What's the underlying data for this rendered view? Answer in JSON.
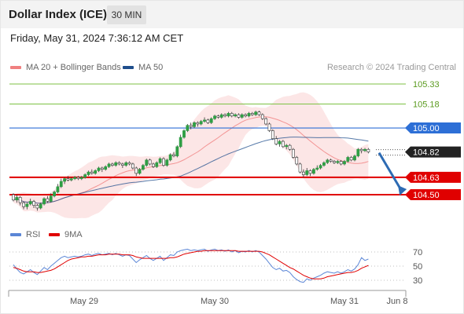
{
  "header": {
    "title": "Dollar Index (ICE)",
    "interval": "30 MIN"
  },
  "datetime": "Friday, May 31, 2024 7:36:12 AM CET",
  "legend": {
    "ma20_bb": "MA 20 + Bollinger Bands",
    "ma50": "MA 50",
    "credit": "Research © 2024 Trading Central",
    "rsi": "RSI",
    "nine_ma": "9MA"
  },
  "colors": {
    "bollinger": "#f08080",
    "ma50": "#1f4e8c",
    "resistance": "#7cc243",
    "pivot": "#2d6fd6",
    "support": "#e00000",
    "current": "#222222",
    "rsi": "#5b86d6",
    "rsi_ma": "#e00000"
  },
  "chart_data": [
    {
      "type": "candlestick",
      "x_tick_labels": [
        "May 29",
        "May 30",
        "May 31",
        "Jun 8"
      ],
      "y_range": [
        104.33,
        105.38
      ],
      "levels": [
        {
          "value": 105.33,
          "label": "105.33",
          "kind": "resistance"
        },
        {
          "value": 105.18,
          "label": "105.18",
          "kind": "resistance"
        },
        {
          "value": 105.0,
          "label": "105.00",
          "kind": "pivot"
        },
        {
          "value": 104.82,
          "label": "104.82",
          "kind": "current"
        },
        {
          "value": 104.63,
          "label": "104.63",
          "kind": "support"
        },
        {
          "value": 104.5,
          "label": "104.50",
          "kind": "support"
        }
      ],
      "forecast": {
        "from": 104.82,
        "to": 104.5,
        "direction": "down"
      },
      "candles": [
        [
          104.5,
          104.46,
          104.51,
          104.45
        ],
        [
          104.46,
          104.48,
          104.5,
          104.44
        ],
        [
          104.48,
          104.44,
          104.49,
          104.42
        ],
        [
          104.44,
          104.41,
          104.45,
          104.39
        ],
        [
          104.41,
          104.43,
          104.44,
          104.39
        ],
        [
          104.43,
          104.45,
          104.47,
          104.42
        ],
        [
          104.45,
          104.42,
          104.46,
          104.4
        ],
        [
          104.42,
          104.4,
          104.43,
          104.38
        ],
        [
          104.4,
          104.43,
          104.44,
          104.39
        ],
        [
          104.43,
          104.47,
          104.48,
          104.42
        ],
        [
          104.47,
          104.45,
          104.49,
          104.44
        ],
        [
          104.45,
          104.49,
          104.51,
          104.44
        ],
        [
          104.49,
          104.52,
          104.53,
          104.48
        ],
        [
          104.52,
          104.56,
          104.58,
          104.51
        ],
        [
          104.56,
          104.6,
          104.62,
          104.55
        ],
        [
          104.6,
          104.62,
          104.63,
          104.58
        ],
        [
          104.62,
          104.61,
          104.64,
          104.6
        ],
        [
          104.61,
          104.62,
          104.63,
          104.6
        ],
        [
          104.62,
          104.63,
          104.64,
          104.61
        ],
        [
          104.63,
          104.62,
          104.64,
          104.61
        ],
        [
          104.62,
          104.63,
          104.64,
          104.61
        ],
        [
          104.63,
          104.65,
          104.66,
          104.62
        ],
        [
          104.65,
          104.67,
          104.68,
          104.64
        ],
        [
          104.67,
          104.66,
          104.69,
          104.65
        ],
        [
          104.66,
          104.68,
          104.69,
          104.65
        ],
        [
          104.68,
          104.7,
          104.71,
          104.67
        ],
        [
          104.7,
          104.69,
          104.71,
          104.67
        ],
        [
          104.69,
          104.71,
          104.72,
          104.68
        ],
        [
          104.71,
          104.73,
          104.74,
          104.7
        ],
        [
          104.73,
          104.72,
          104.74,
          104.71
        ],
        [
          104.72,
          104.74,
          104.75,
          104.71
        ],
        [
          104.74,
          104.73,
          104.75,
          104.72
        ],
        [
          104.73,
          104.72,
          104.74,
          104.7
        ],
        [
          104.72,
          104.74,
          104.75,
          104.71
        ],
        [
          104.74,
          104.73,
          104.75,
          104.72
        ],
        [
          104.73,
          104.7,
          104.74,
          104.69
        ],
        [
          104.7,
          104.66,
          104.71,
          104.64
        ],
        [
          104.66,
          104.69,
          104.7,
          104.65
        ],
        [
          104.69,
          104.72,
          104.73,
          104.68
        ],
        [
          104.72,
          104.76,
          104.77,
          104.71
        ],
        [
          104.76,
          104.73,
          104.77,
          104.72
        ],
        [
          104.73,
          104.71,
          104.74,
          104.7
        ],
        [
          104.71,
          104.74,
          104.75,
          104.7
        ],
        [
          104.74,
          104.77,
          104.78,
          104.73
        ],
        [
          104.77,
          104.72,
          104.78,
          104.71
        ],
        [
          104.72,
          104.76,
          104.77,
          104.71
        ],
        [
          104.76,
          104.8,
          104.81,
          104.75
        ],
        [
          104.8,
          104.79,
          104.82,
          104.78
        ],
        [
          104.79,
          104.86,
          104.87,
          104.78
        ],
        [
          104.86,
          104.93,
          104.95,
          104.85
        ],
        [
          104.93,
          104.98,
          104.99,
          104.92
        ],
        [
          104.98,
          105.02,
          105.03,
          104.97
        ],
        [
          105.02,
          105.01,
          105.04,
          104.99
        ],
        [
          105.01,
          105.04,
          105.05,
          105.0
        ],
        [
          105.04,
          105.03,
          105.05,
          105.01
        ],
        [
          105.03,
          105.05,
          105.06,
          105.02
        ],
        [
          105.05,
          105.06,
          105.08,
          105.04
        ],
        [
          105.06,
          105.04,
          105.07,
          105.03
        ],
        [
          105.04,
          105.07,
          105.08,
          105.03
        ],
        [
          105.07,
          105.09,
          105.1,
          105.06
        ],
        [
          105.09,
          105.08,
          105.1,
          105.07
        ],
        [
          105.08,
          105.1,
          105.11,
          105.07
        ],
        [
          105.1,
          105.09,
          105.11,
          105.08
        ],
        [
          105.09,
          105.11,
          105.12,
          105.08
        ],
        [
          105.11,
          105.09,
          105.12,
          105.08
        ],
        [
          105.09,
          105.1,
          105.11,
          105.08
        ],
        [
          105.1,
          105.08,
          105.11,
          105.07
        ],
        [
          105.08,
          105.1,
          105.11,
          105.07
        ],
        [
          105.1,
          105.09,
          105.11,
          105.08
        ],
        [
          105.09,
          105.11,
          105.12,
          105.08
        ],
        [
          105.11,
          105.1,
          105.12,
          105.09
        ],
        [
          105.1,
          105.12,
          105.13,
          105.09
        ],
        [
          105.12,
          105.1,
          105.13,
          105.09
        ],
        [
          105.1,
          105.07,
          105.11,
          105.06
        ],
        [
          105.07,
          105.03,
          105.08,
          105.02
        ],
        [
          105.03,
          104.98,
          105.04,
          104.97
        ],
        [
          104.98,
          104.92,
          104.99,
          104.91
        ],
        [
          104.92,
          104.88,
          104.94,
          104.87
        ],
        [
          104.88,
          104.9,
          104.91,
          104.86
        ],
        [
          104.9,
          104.86,
          104.91,
          104.85
        ],
        [
          104.86,
          104.87,
          104.88,
          104.84
        ],
        [
          104.87,
          104.84,
          104.88,
          104.83
        ],
        [
          104.84,
          104.78,
          104.85,
          104.77
        ],
        [
          104.78,
          104.73,
          104.79,
          104.72
        ],
        [
          104.73,
          104.67,
          104.74,
          104.66
        ],
        [
          104.67,
          104.65,
          104.69,
          104.63
        ],
        [
          104.65,
          104.68,
          104.7,
          104.64
        ],
        [
          104.68,
          104.66,
          104.69,
          104.64
        ],
        [
          104.66,
          104.69,
          104.7,
          104.65
        ],
        [
          104.69,
          104.7,
          104.72,
          104.68
        ],
        [
          104.7,
          104.72,
          104.73,
          104.69
        ],
        [
          104.72,
          104.74,
          104.75,
          104.71
        ],
        [
          104.74,
          104.76,
          104.77,
          104.73
        ],
        [
          104.76,
          104.75,
          104.77,
          104.74
        ],
        [
          104.75,
          104.74,
          104.76,
          104.73
        ],
        [
          104.74,
          104.75,
          104.76,
          104.73
        ],
        [
          104.75,
          104.73,
          104.76,
          104.72
        ],
        [
          104.73,
          104.75,
          104.76,
          104.72
        ],
        [
          104.75,
          104.78,
          104.79,
          104.74
        ],
        [
          104.78,
          104.76,
          104.79,
          104.75
        ],
        [
          104.76,
          104.79,
          104.8,
          104.75
        ],
        [
          104.79,
          104.84,
          104.85,
          104.78
        ],
        [
          104.84,
          104.83,
          104.85,
          104.81
        ],
        [
          104.83,
          104.84,
          104.85,
          104.82
        ],
        [
          104.84,
          104.82,
          104.85,
          104.81
        ]
      ]
    },
    {
      "type": "line",
      "name": "RSI",
      "y_ticks": [
        70,
        50,
        30
      ],
      "ylim": [
        15,
        80
      ],
      "series": [
        {
          "name": "RSI",
          "values": [
            52,
            46,
            41,
            39,
            42,
            45,
            41,
            38,
            43,
            48,
            45,
            50,
            54,
            58,
            62,
            64,
            62,
            63,
            64,
            63,
            64,
            66,
            67,
            65,
            67,
            68,
            66,
            67,
            68,
            66,
            68,
            66,
            64,
            66,
            65,
            60,
            55,
            59,
            62,
            65,
            61,
            58,
            61,
            64,
            58,
            62,
            66,
            65,
            70,
            72,
            73,
            74,
            72,
            73,
            72,
            73,
            74,
            71,
            73,
            74,
            72,
            73,
            71,
            73,
            70,
            72,
            69,
            71,
            70,
            72,
            70,
            72,
            70,
            65,
            60,
            54,
            48,
            45,
            47,
            43,
            44,
            41,
            35,
            31,
            28,
            27,
            32,
            30,
            33,
            35,
            37,
            40,
            42,
            41,
            40,
            42,
            40,
            42,
            45,
            43,
            46,
            52,
            62,
            58,
            60
          ]
        },
        {
          "name": "9MA",
          "values": [
            48,
            47,
            45,
            43,
            42,
            42,
            42,
            41,
            41,
            42,
            43,
            44,
            46,
            49,
            52,
            55,
            58,
            60,
            61,
            62,
            63,
            63,
            64,
            64,
            65,
            66,
            66,
            66,
            67,
            67,
            67,
            67,
            66,
            66,
            66,
            65,
            63,
            62,
            61,
            61,
            61,
            61,
            61,
            61,
            61,
            61,
            62,
            62,
            63,
            65,
            67,
            68,
            69,
            70,
            71,
            71,
            72,
            72,
            72,
            72,
            72,
            72,
            72,
            72,
            72,
            72,
            71,
            71,
            71,
            71,
            71,
            71,
            71,
            70,
            68,
            66,
            63,
            60,
            57,
            54,
            51,
            48,
            46,
            43,
            40,
            37,
            35,
            33,
            32,
            32,
            32,
            33,
            35,
            36,
            37,
            38,
            39,
            40,
            41,
            41,
            42,
            44,
            47,
            49,
            51
          ]
        }
      ]
    }
  ]
}
